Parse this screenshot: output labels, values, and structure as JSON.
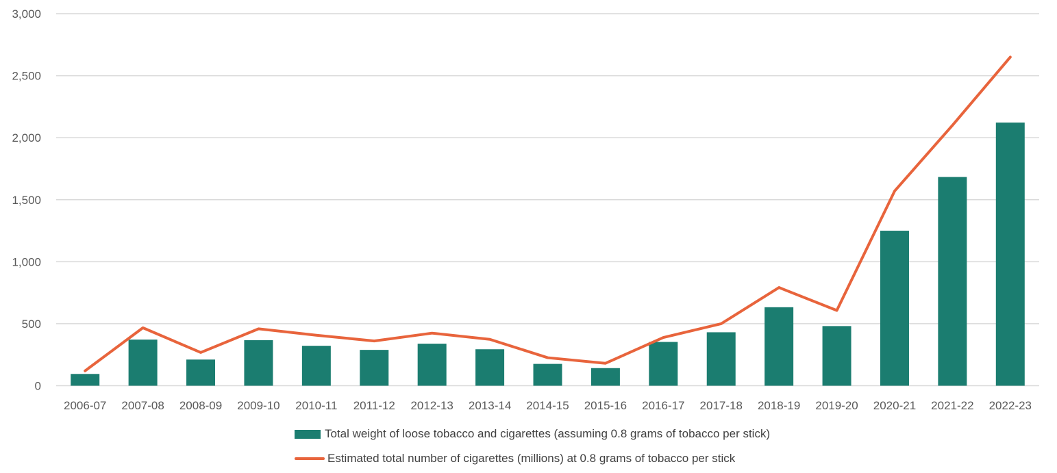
{
  "chart_data": {
    "type": "bar+line",
    "title": "",
    "xlabel": "",
    "ylabel": "",
    "ylim": [
      0,
      3000
    ],
    "yticks": [
      0,
      500,
      1000,
      1500,
      2000,
      2500,
      3000
    ],
    "ytick_labels": [
      "0",
      "500",
      "1,000",
      "1,500",
      "2,000",
      "2,500",
      "3,000"
    ],
    "grid": true,
    "legend_position": "bottom",
    "categories": [
      "2006-07",
      "2007-08",
      "2008-09",
      "2009-10",
      "2010-11",
      "2011-12",
      "2012-13",
      "2013-14",
      "2014-15",
      "2015-16",
      "2016-17",
      "2017-18",
      "2018-19",
      "2019-20",
      "2020-21",
      "2021-22",
      "2022-23"
    ],
    "series": [
      {
        "name": "Total weight of loose tobacco and cigarettes (assuming 0.8 grams of tobacco per stick)",
        "type": "bar",
        "color": "#1b7d70",
        "values": [
          95,
          372,
          211,
          367,
          322,
          289,
          339,
          294,
          176,
          142,
          353,
          431,
          633,
          481,
          1250,
          1683,
          2122
        ]
      },
      {
        "name": "Estimated total number of cigarettes (millions) at 0.8 grams of tobacco per stick",
        "type": "line",
        "color": "#e8643c",
        "values": [
          120,
          467,
          268,
          459,
          407,
          361,
          424,
          374,
          226,
          181,
          389,
          500,
          792,
          607,
          1570,
          2100,
          2650
        ]
      }
    ]
  }
}
